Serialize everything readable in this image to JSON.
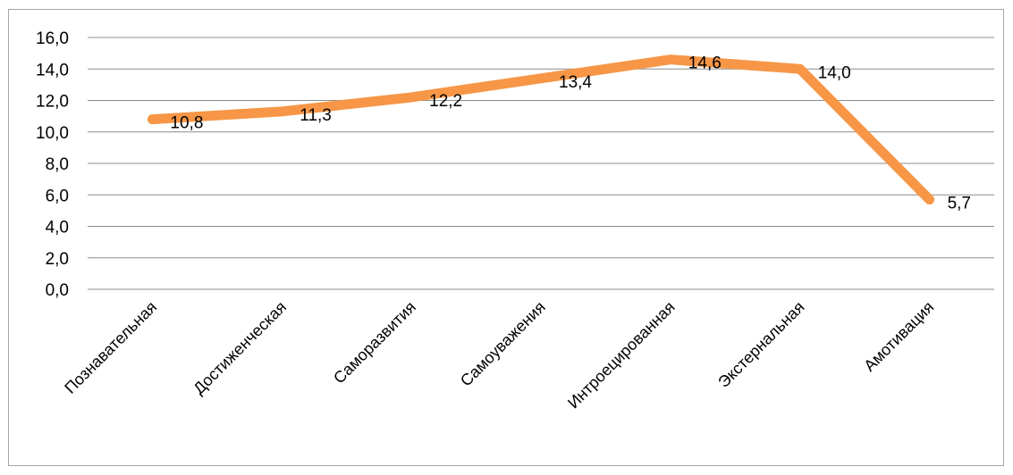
{
  "chart_data": {
    "type": "line",
    "categories": [
      "Познавательная",
      "Достиженческая",
      "Саморазвития",
      "Самоуважения",
      "Интроецированная",
      "Экстернальная",
      "Амотивация"
    ],
    "series": [
      {
        "values": [
          10.8,
          11.3,
          12.2,
          13.4,
          14.6,
          14.0,
          5.7
        ],
        "color": "#f79646"
      }
    ],
    "data_labels": [
      "10,8",
      "11,3",
      "12,2",
      "13,4",
      "14,6",
      "14,0",
      "5,7"
    ],
    "y_ticks": [
      "0,0",
      "2,0",
      "4,0",
      "6,0",
      "8,0",
      "10,0",
      "12,0",
      "14,0",
      "16,0"
    ],
    "ylim": [
      0,
      16
    ],
    "grid": true,
    "title": "",
    "xlabel": "",
    "ylabel": ""
  }
}
